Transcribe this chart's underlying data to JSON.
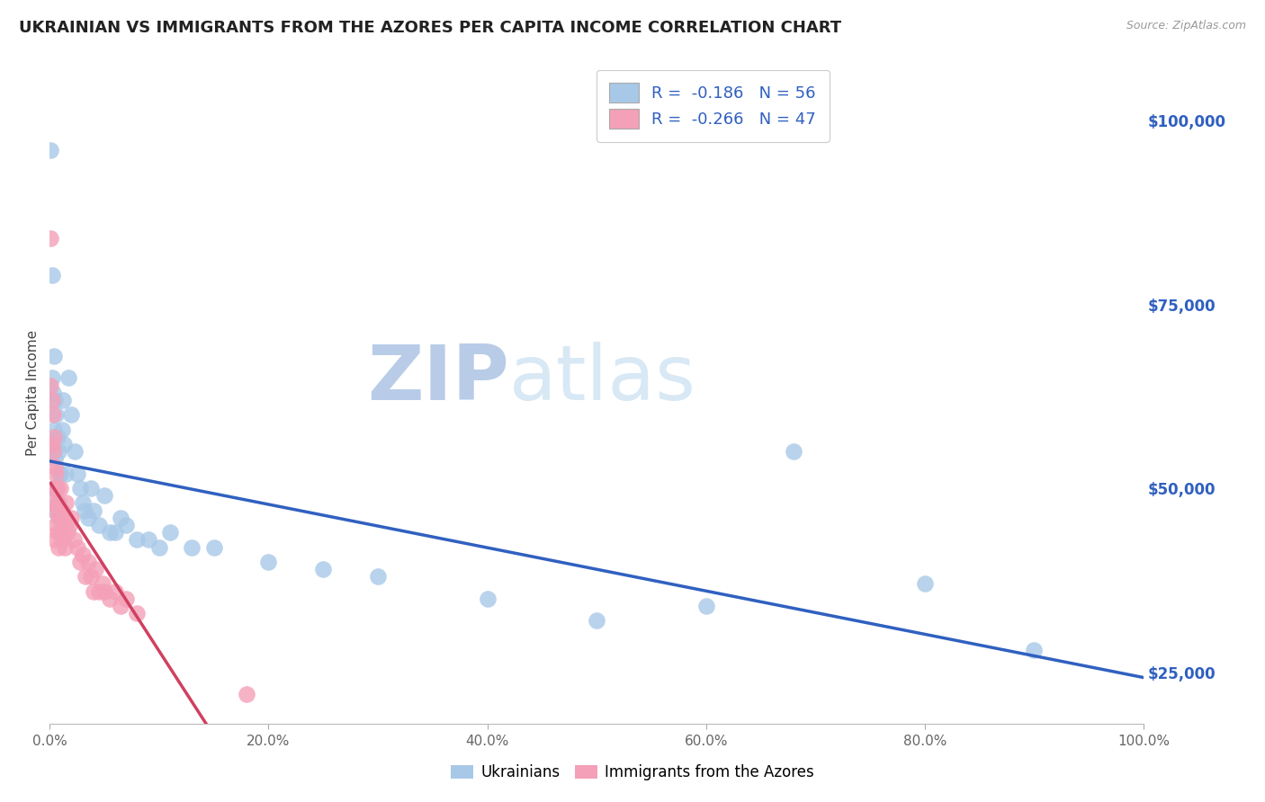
{
  "title": "UKRAINIAN VS IMMIGRANTS FROM THE AZORES PER CAPITA INCOME CORRELATION CHART",
  "source": "Source: ZipAtlas.com",
  "ylabel": "Per Capita Income",
  "xlim": [
    0,
    1.0
  ],
  "ylim": [
    18000,
    108000
  ],
  "xticks": [
    0.0,
    0.2,
    0.4,
    0.6,
    0.8,
    1.0
  ],
  "xticklabels": [
    "0.0%",
    "20.0%",
    "40.0%",
    "60.0%",
    "80.0%",
    "100.0%"
  ],
  "yticks": [
    25000,
    50000,
    75000,
    100000
  ],
  "yticklabels": [
    "$25,000",
    "$50,000",
    "$75,000",
    "$100,000"
  ],
  "legend_R1": "R =  -0.186",
  "legend_N1": "N = 56",
  "legend_R2": "R =  -0.266",
  "legend_N2": "N = 47",
  "blue_color": "#a8c8e8",
  "pink_color": "#f4a0b8",
  "blue_line_color": "#3060c0",
  "pink_line_color": "#d04060",
  "dashed_line_color": "#ddbbcc",
  "watermark": "ZIPatlas",
  "watermark_color": "#d8e8f5",
  "background_color": "#ffffff",
  "grid_color": "#dddddd",
  "title_color": "#222222",
  "ylabel_color": "#444444",
  "source_color": "#999999",
  "legend_text_color": "#3060c0",
  "legend_label_color": "#222222",
  "ukr_x": [
    0.001,
    0.002,
    0.002,
    0.003,
    0.003,
    0.003,
    0.004,
    0.004,
    0.004,
    0.005,
    0.005,
    0.005,
    0.006,
    0.006,
    0.007,
    0.007,
    0.008,
    0.008,
    0.009,
    0.01,
    0.01,
    0.011,
    0.012,
    0.013,
    0.015,
    0.017,
    0.02,
    0.023,
    0.025,
    0.028,
    0.03,
    0.032,
    0.035,
    0.038,
    0.04,
    0.045,
    0.05,
    0.055,
    0.06,
    0.065,
    0.07,
    0.08,
    0.09,
    0.1,
    0.11,
    0.13,
    0.15,
    0.2,
    0.25,
    0.3,
    0.4,
    0.5,
    0.6,
    0.68,
    0.8,
    0.9
  ],
  "ukr_y": [
    96000,
    79000,
    65000,
    63000,
    55000,
    50000,
    68000,
    58000,
    50000,
    62000,
    54000,
    47000,
    60000,
    50000,
    57000,
    48000,
    55000,
    46000,
    52000,
    52000,
    46000,
    58000,
    62000,
    56000,
    52000,
    65000,
    60000,
    55000,
    52000,
    50000,
    48000,
    47000,
    46000,
    50000,
    47000,
    45000,
    49000,
    44000,
    44000,
    46000,
    45000,
    43000,
    43000,
    42000,
    44000,
    42000,
    42000,
    40000,
    39000,
    38000,
    35000,
    32000,
    34000,
    55000,
    37000,
    28000
  ],
  "azores_x": [
    0.001,
    0.001,
    0.002,
    0.002,
    0.003,
    0.003,
    0.003,
    0.004,
    0.004,
    0.005,
    0.005,
    0.005,
    0.006,
    0.006,
    0.007,
    0.007,
    0.008,
    0.008,
    0.009,
    0.01,
    0.01,
    0.011,
    0.012,
    0.013,
    0.014,
    0.015,
    0.016,
    0.018,
    0.02,
    0.022,
    0.025,
    0.028,
    0.03,
    0.033,
    0.035,
    0.038,
    0.04,
    0.042,
    0.045,
    0.048,
    0.05,
    0.055,
    0.06,
    0.065,
    0.07,
    0.08,
    0.18
  ],
  "azores_y": [
    84000,
    64000,
    62000,
    56000,
    60000,
    55000,
    50000,
    57000,
    48000,
    53000,
    47000,
    43000,
    52000,
    45000,
    50000,
    44000,
    48000,
    42000,
    46000,
    50000,
    44000,
    47000,
    43000,
    46000,
    42000,
    48000,
    44000,
    45000,
    46000,
    43000,
    42000,
    40000,
    41000,
    38000,
    40000,
    38000,
    36000,
    39000,
    36000,
    37000,
    36000,
    35000,
    36000,
    34000,
    35000,
    33000,
    22000
  ]
}
